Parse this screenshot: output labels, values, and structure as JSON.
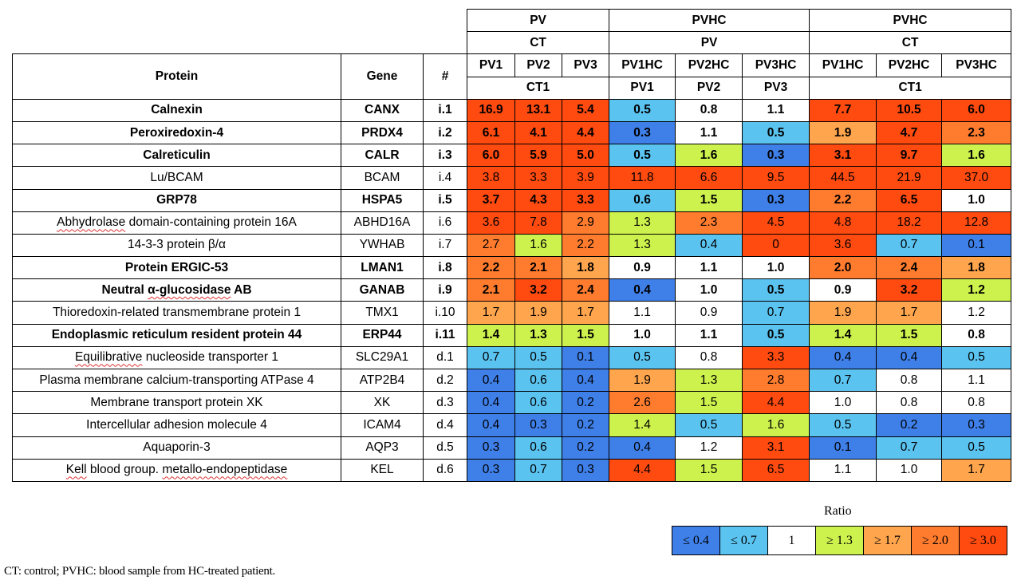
{
  "header": {
    "group1": {
      "title": "PV",
      "ref": "CT"
    },
    "group2": {
      "title": "PVHC",
      "ref": "PV"
    },
    "group3": {
      "title": "PVHC",
      "ref": "CT"
    },
    "col_protein": "Protein",
    "col_gene": "Gene",
    "col_num": "#",
    "samples": [
      "PV1",
      "PV2",
      "PV3",
      "PV1HC",
      "PV2HC",
      "PV3HC",
      "PV1HC",
      "PV2HC",
      "PV3HC"
    ],
    "controls": {
      "ct1_a": "CT1",
      "pv1": "PV1",
      "pv2": "PV2",
      "pv3": "PV3",
      "ct1_b": "CT1"
    }
  },
  "rows": [
    {
      "protein": "Calnexin",
      "gene": "CANX",
      "id": "i.1",
      "bold": true,
      "values": [
        "16.9",
        "13.1",
        "5.4",
        "0.5",
        "0.8",
        "1.1",
        "7.7",
        "10.5",
        "6.0"
      ]
    },
    {
      "protein": "Peroxiredoxin-4",
      "gene": "PRDX4",
      "id": "i.2",
      "bold": true,
      "values": [
        "6.1",
        "4.1",
        "4.4",
        "0.3",
        "1.1",
        "0.5",
        "1.9",
        "4.7",
        "2.3"
      ]
    },
    {
      "protein": "Calreticulin",
      "gene": "CALR",
      "id": "i.3",
      "bold": true,
      "values": [
        "6.0",
        "5.9",
        "5.0",
        "0.5",
        "1.6",
        "0.3",
        "3.1",
        "9.7",
        "1.6"
      ]
    },
    {
      "protein": "Lu/BCAM",
      "gene": "BCAM",
      "id": "i.4",
      "bold": false,
      "values": [
        "3.8",
        "3.3",
        "3.9",
        "11.8",
        "6.6",
        "9.5",
        "44.5",
        "21.9",
        "37.0"
      ]
    },
    {
      "protein": "GRP78",
      "gene": "HSPA5",
      "id": "i.5",
      "bold": true,
      "values": [
        "3.7",
        "4.3",
        "3.3",
        "0.6",
        "1.5",
        "0.3",
        "2.2",
        "6.5",
        "1.0"
      ]
    },
    {
      "protein": "Abhydrolase domain-containing protein 16A",
      "gene": "ABHD16A",
      "id": "i.6",
      "bold": false,
      "values": [
        "3.6",
        "7.8",
        "2.9",
        "1.3",
        "2.3",
        "4.5",
        "4.8",
        "18.2",
        "12.8"
      ]
    },
    {
      "protein": "14-3-3 protein β/α",
      "gene": "YWHAB",
      "id": "i.7",
      "bold": false,
      "values": [
        "2.7",
        "1.6",
        "2.2",
        "1.3",
        "0.4",
        "0",
        "3.6",
        "0.7",
        "0.1"
      ]
    },
    {
      "protein": "Protein ERGIC-53",
      "gene": "LMAN1",
      "id": "i.8",
      "bold": true,
      "values": [
        "2.2",
        "2.1",
        "1.8",
        "0.9",
        "1.1",
        "1.0",
        "2.0",
        "2.4",
        "1.8"
      ]
    },
    {
      "protein": "Neutral α-glucosidase AB",
      "gene": "GANAB",
      "id": "i.9",
      "bold": true,
      "values": [
        "2.1",
        "3.2",
        "2.4",
        "0.4",
        "1.0",
        "0.5",
        "0.9",
        "3.2",
        "1.2"
      ]
    },
    {
      "protein": "Thioredoxin-related transmembrane protein 1",
      "gene": "TMX1",
      "id": "i.10",
      "bold": false,
      "values": [
        "1.7",
        "1.9",
        "1.7",
        "1.1",
        "0.9",
        "0.7",
        "1.9",
        "1.7",
        "1.2"
      ]
    },
    {
      "protein": "Endoplasmic reticulum resident protein 44",
      "gene": "ERP44",
      "id": "i.11",
      "bold": true,
      "values": [
        "1.4",
        "1.3",
        "1.5",
        "1.0",
        "1.1",
        "0.5",
        "1.4",
        "1.5",
        "0.8"
      ]
    },
    {
      "protein": "Equilibrative nucleoside transporter 1",
      "gene": "SLC29A1",
      "id": "d.1",
      "bold": false,
      "values": [
        "0.7",
        "0.5",
        "0.1",
        "0.5",
        "0.8",
        "3.3",
        "0.4",
        "0.4",
        "0.5"
      ]
    },
    {
      "protein": "Plasma membrane calcium-transporting ATPase 4",
      "gene": "ATP2B4",
      "id": "d.2",
      "bold": false,
      "values": [
        "0.4",
        "0.6",
        "0.4",
        "1.9",
        "1.3",
        "2.8",
        "0.7",
        "0.8",
        "1.1"
      ]
    },
    {
      "protein": "Membrane transport protein XK",
      "gene": "XK",
      "id": "d.3",
      "bold": false,
      "values": [
        "0.4",
        "0.6",
        "0.2",
        "2.6",
        "1.5",
        "4.4",
        "1.0",
        "0.8",
        "0.8"
      ]
    },
    {
      "protein": "Intercellular adhesion molecule 4",
      "gene": "ICAM4",
      "id": "d.4",
      "bold": false,
      "values": [
        "0.4",
        "0.3",
        "0.2",
        "1.4",
        "0.5",
        "1.6",
        "0.5",
        "0.2",
        "0.3"
      ]
    },
    {
      "protein": "Aquaporin-3",
      "gene": "AQP3",
      "id": "d.5",
      "bold": false,
      "values": [
        "0.3",
        "0.6",
        "0.2",
        "0.4",
        "1.2",
        "3.1",
        "0.1",
        "0.7",
        "0.5"
      ]
    },
    {
      "protein": "Kell blood group. metallo-endopeptidase",
      "gene": "KEL",
      "id": "d.6",
      "bold": false,
      "values": [
        "0.3",
        "0.7",
        "0.3",
        "4.4",
        "1.5",
        "6.5",
        "1.1",
        "1.0",
        "1.7"
      ]
    }
  ],
  "cell_colors": [
    [
      "red",
      "red",
      "red",
      "lblue",
      "white",
      "white",
      "red",
      "red",
      "red"
    ],
    [
      "red",
      "red",
      "red",
      "blue",
      "white",
      "lblue",
      "lorange",
      "red",
      "orange"
    ],
    [
      "red",
      "red",
      "red",
      "lblue",
      "yellow",
      "blue",
      "red",
      "red",
      "yellow"
    ],
    [
      "red",
      "red",
      "red",
      "red",
      "red",
      "red",
      "red",
      "red",
      "red"
    ],
    [
      "red",
      "red",
      "red",
      "lblue",
      "yellow",
      "blue",
      "orange",
      "red",
      "white"
    ],
    [
      "red",
      "red",
      "orange",
      "yellow",
      "orange",
      "red",
      "red",
      "red",
      "red"
    ],
    [
      "orange",
      "yellow",
      "orange",
      "yellow",
      "lblue",
      "red",
      "red",
      "lblue",
      "blue"
    ],
    [
      "orange",
      "orange",
      "lorange",
      "white",
      "white",
      "white",
      "orange",
      "orange",
      "lorange"
    ],
    [
      "orange",
      "red",
      "orange",
      "blue",
      "white",
      "lblue",
      "white",
      "red",
      "yellow"
    ],
    [
      "lorange",
      "lorange",
      "lorange",
      "white",
      "white",
      "lblue",
      "lorange",
      "lorange",
      "white"
    ],
    [
      "yellow",
      "yellow",
      "yellow",
      "white",
      "white",
      "lblue",
      "yellow",
      "yellow",
      "white"
    ],
    [
      "lblue",
      "lblue",
      "blue",
      "lblue",
      "white",
      "red",
      "blue",
      "blue",
      "lblue"
    ],
    [
      "blue",
      "lblue",
      "blue",
      "lorange",
      "yellow",
      "orange",
      "lblue",
      "white",
      "white"
    ],
    [
      "blue",
      "lblue",
      "blue",
      "orange",
      "yellow",
      "red",
      "white",
      "white",
      "white"
    ],
    [
      "blue",
      "blue",
      "blue",
      "yellow",
      "lblue",
      "yellow",
      "lblue",
      "blue",
      "blue"
    ],
    [
      "blue",
      "lblue",
      "blue",
      "blue",
      "white",
      "red",
      "blue",
      "lblue",
      "lblue"
    ],
    [
      "blue",
      "lblue",
      "blue",
      "red",
      "yellow",
      "red",
      "white",
      "white",
      "lorange"
    ]
  ],
  "spellcheck_words": {
    "Abhydrolase": true,
    "Equilibrative": true,
    "glucosidase": true,
    "Kell": true,
    "metallo-endopeptidase": true
  },
  "legend": {
    "title": "Ratio",
    "items": [
      {
        "label": "≤ 0.4",
        "color": "#3f7fe8"
      },
      {
        "label": "≤ 0.7",
        "color": "#5bc3f0"
      },
      {
        "label": "1",
        "color": "#ffffff"
      },
      {
        "label": "≥ 1.3",
        "color": "#cdf24d"
      },
      {
        "label": "≥ 1.7",
        "color": "#ffa54d"
      },
      {
        "label": "≥ 2.0",
        "color": "#ff7b2e"
      },
      {
        "label": "≥ 3.0",
        "color": "#ff4a10"
      }
    ]
  },
  "footnote": "CT: control; PVHC: blood sample from HC-treated patient."
}
